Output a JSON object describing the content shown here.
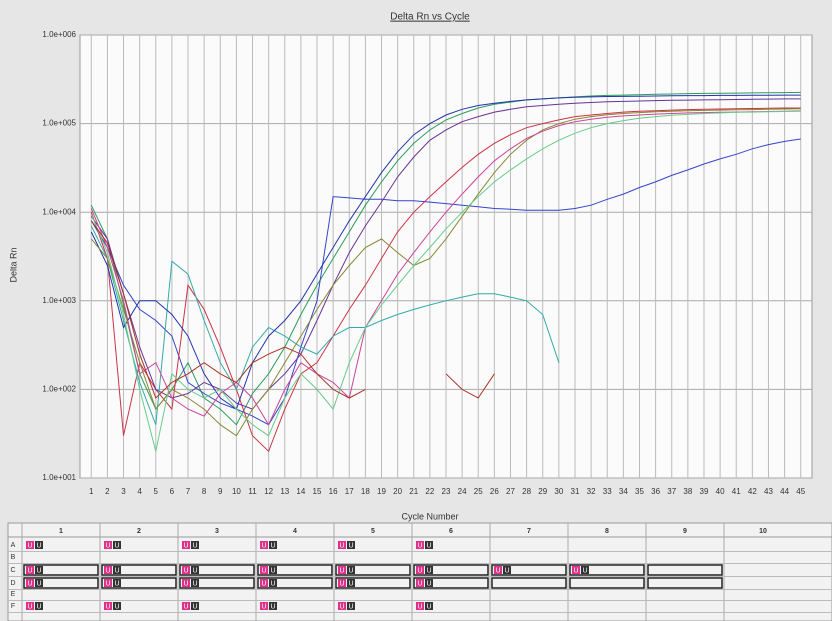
{
  "chart_data": {
    "type": "line",
    "title": "Delta Rn vs Cycle",
    "x_label": "Cycle Number",
    "y_label": "Delta Rn",
    "yscale": "log",
    "grid": true,
    "xlim": [
      0.3,
      45.7
    ],
    "ylim": [
      10,
      1000000
    ],
    "xticks": [
      1,
      2,
      3,
      4,
      5,
      6,
      7,
      8,
      9,
      10,
      11,
      12,
      13,
      14,
      15,
      16,
      17,
      18,
      19,
      20,
      21,
      22,
      23,
      24,
      25,
      26,
      27,
      28,
      29,
      30,
      31,
      32,
      33,
      34,
      35,
      36,
      37,
      38,
      39,
      40,
      41,
      42,
      43,
      44,
      45
    ],
    "yticks": [
      {
        "value": 10,
        "label": "1.0e+001"
      },
      {
        "value": 100,
        "label": "1.0e+002"
      },
      {
        "value": 1000,
        "label": "1.0e+003"
      },
      {
        "value": 10000,
        "label": "1.0e+004"
      },
      {
        "value": 100000,
        "label": "1.0e+005"
      },
      {
        "value": 1000000,
        "label": "1.0e+006"
      }
    ],
    "x": [
      1,
      2,
      3,
      4,
      5,
      6,
      7,
      8,
      9,
      10,
      11,
      12,
      13,
      14,
      15,
      16,
      17,
      18,
      19,
      20,
      21,
      22,
      23,
      24,
      25,
      26,
      27,
      28,
      29,
      30,
      31,
      32,
      33,
      34,
      35,
      36,
      37,
      38,
      39,
      40,
      41,
      42,
      43,
      44,
      45
    ],
    "series": [
      {
        "color": "#2a9d5a",
        "values": [
          12000,
          5000,
          900,
          150,
          60,
          100,
          200,
          80,
          60,
          40,
          90,
          150,
          300,
          700,
          1500,
          3000,
          6000,
          12000,
          22000,
          38000,
          60000,
          85000,
          110000,
          130000,
          150000,
          165000,
          175000,
          185000,
          190000,
          195000,
          200000,
          205000,
          208000,
          210000,
          212000,
          214000,
          216000,
          218000,
          219000,
          220000,
          221000,
          222000,
          223000,
          224000,
          225000
        ]
      },
      {
        "color": "#3344cc",
        "values": [
          8000,
          4000,
          1500,
          800,
          600,
          400,
          120,
          90,
          70,
          60,
          50,
          40,
          80,
          300,
          1000,
          15000,
          14500,
          14000,
          14000,
          13500,
          13500,
          13000,
          12500,
          12000,
          11500,
          11000,
          10800,
          10500,
          10500,
          10500,
          11000,
          12000,
          14000,
          16000,
          19000,
          22000,
          26000,
          30000,
          35000,
          40000,
          45000,
          52000,
          58000,
          63000,
          67000
        ]
      },
      {
        "color": "#cc3344",
        "values": [
          10000,
          3000,
          30,
          200,
          100,
          60,
          1500,
          800,
          300,
          100,
          30,
          20,
          60,
          150,
          200,
          400,
          800,
          1500,
          3000,
          6000,
          10000,
          15000,
          22000,
          32000,
          45000,
          60000,
          75000,
          90000,
          100000,
          110000,
          120000,
          125000,
          130000,
          135000,
          138000,
          140000,
          142000,
          144000,
          145000,
          146000,
          147000,
          148000,
          149000,
          150000,
          150000
        ]
      },
      {
        "color": "#663399",
        "values": [
          9000,
          5000,
          1200,
          300,
          100,
          80,
          90,
          120,
          100,
          70,
          60,
          100,
          150,
          250,
          600,
          1500,
          3500,
          7000,
          13000,
          25000,
          42000,
          65000,
          85000,
          105000,
          120000,
          135000,
          145000,
          155000,
          160000,
          165000,
          170000,
          173000,
          176000,
          178000,
          180000,
          182000,
          183000,
          184000,
          185000,
          186000,
          187000,
          188000,
          189000,
          190000,
          190000
        ]
      },
      {
        "color": "#33aaaa",
        "values": [
          7000,
          3000,
          600,
          120,
          40,
          2800,
          2000,
          600,
          200,
          100,
          300,
          500,
          400,
          300,
          250,
          400,
          500,
          500,
          600,
          700,
          800,
          900,
          1000,
          1100,
          1200,
          1200,
          1100,
          1000,
          700,
          200,
          null,
          null,
          null,
          null,
          null,
          null,
          null,
          null,
          null,
          null,
          null,
          null,
          null,
          null,
          null
        ]
      },
      {
        "color": "#2233aa",
        "values": [
          6000,
          2500,
          500,
          1000,
          1000,
          700,
          400,
          150,
          80,
          60,
          200,
          400,
          600,
          1000,
          2000,
          4000,
          8000,
          15000,
          28000,
          48000,
          75000,
          100000,
          125000,
          145000,
          160000,
          170000,
          178000,
          185000,
          190000,
          195000,
          198000,
          200000,
          202000,
          203000,
          204000,
          205000,
          206000,
          207000,
          207000,
          208000,
          208000,
          209000,
          209000,
          210000,
          210000
        ]
      },
      {
        "color": "#888833",
        "values": [
          5000,
          3000,
          800,
          200,
          60,
          100,
          80,
          60,
          40,
          30,
          60,
          100,
          200,
          400,
          800,
          1500,
          2500,
          4000,
          5000,
          3500,
          2500,
          3000,
          5000,
          9000,
          16000,
          28000,
          45000,
          65000,
          85000,
          100000,
          112000,
          120000,
          126000,
          130000,
          133000,
          136000,
          138000,
          140000,
          141000,
          142000,
          143000,
          144000,
          145000,
          146000,
          147000
        ]
      },
      {
        "color": "#cc4499",
        "values": [
          11000,
          4000,
          1000,
          150,
          200,
          80,
          60,
          50,
          90,
          120,
          80,
          40,
          100,
          200,
          150,
          120,
          80,
          500,
          1000,
          2000,
          3500,
          6000,
          10000,
          16000,
          25000,
          38000,
          52000,
          68000,
          82000,
          95000,
          105000,
          112000,
          118000,
          122000,
          125000,
          128000,
          130000,
          132000,
          133000,
          134000,
          135000,
          136000,
          137000,
          138000,
          139000
        ]
      },
      {
        "color": "#66cc88",
        "values": [
          9500,
          3500,
          700,
          100,
          20,
          150,
          100,
          80,
          100,
          60,
          40,
          30,
          80,
          150,
          100,
          60,
          200,
          500,
          900,
          1500,
          2500,
          4000,
          6500,
          10000,
          15000,
          22000,
          30000,
          40000,
          52000,
          65000,
          78000,
          90000,
          100000,
          108000,
          115000,
          120000,
          124000,
          127000,
          130000,
          132000,
          134000,
          135000,
          136000,
          137000,
          138000
        ]
      },
      {
        "color": "#aa3322",
        "values": [
          8000,
          4500,
          1200,
          250,
          80,
          120,
          150,
          200,
          150,
          120,
          200,
          250,
          300,
          250,
          150,
          100,
          80,
          100,
          null,
          null,
          null,
          null,
          150,
          100,
          80,
          150,
          null,
          null,
          null,
          null,
          null,
          null,
          null,
          null,
          null,
          null,
          null,
          null,
          null,
          null,
          null,
          null,
          null,
          null,
          null
        ]
      }
    ]
  },
  "plate": {
    "columns": [
      "1",
      "2",
      "3",
      "4",
      "5",
      "6",
      "7",
      "8",
      "9",
      "10"
    ],
    "rows": [
      {
        "label": "A",
        "wells": [
          [
            "U",
            "U"
          ],
          [
            "U",
            "U"
          ],
          [
            "U",
            "U"
          ],
          [
            "U",
            "U"
          ],
          [
            "U",
            "U"
          ],
          [
            "U",
            "U"
          ],
          null,
          null,
          null,
          null
        ]
      },
      {
        "label": "B",
        "wells": [
          null,
          null,
          null,
          null,
          null,
          null,
          null,
          null,
          null,
          null
        ]
      },
      {
        "label": "C",
        "wells": [
          [
            "U",
            "U"
          ],
          [
            "U",
            "U"
          ],
          [
            "U",
            "U"
          ],
          [
            "U",
            "U"
          ],
          [
            "U",
            "U"
          ],
          [
            "U",
            "U"
          ],
          [
            "U",
            "U"
          ],
          [
            "U",
            "U"
          ],
          null,
          null
        ]
      },
      {
        "label": "D",
        "wells": [
          [
            "U",
            "U"
          ],
          [
            "U",
            "U"
          ],
          [
            "U",
            "U"
          ],
          [
            "U",
            "U"
          ],
          [
            "U",
            "U"
          ],
          [
            "U",
            "U"
          ],
          null,
          null,
          null,
          null
        ]
      },
      {
        "label": "E",
        "wells": [
          null,
          null,
          null,
          null,
          null,
          null,
          null,
          null,
          null,
          null
        ]
      },
      {
        "label": "F",
        "wells": [
          [
            "U",
            "U"
          ],
          [
            "U",
            "U"
          ],
          [
            "U",
            "U"
          ],
          [
            "U",
            "U"
          ],
          [
            "U",
            "U"
          ],
          [
            "U",
            "U"
          ],
          null,
          null,
          null,
          null
        ]
      }
    ]
  }
}
